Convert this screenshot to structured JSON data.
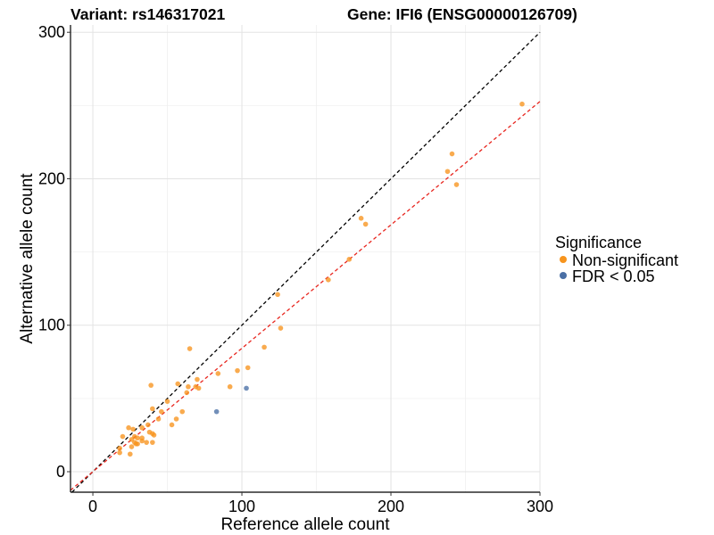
{
  "chart_data": {
    "type": "scatter",
    "title_left": "Variant: rs146317021",
    "title_right": "Gene: IFI6 (ENSG00000126709)",
    "xlabel": "Reference allele count",
    "ylabel": "Alternative allele count",
    "xlim": [
      -15,
      300
    ],
    "ylim": [
      -14,
      305
    ],
    "xticks": [
      0,
      100,
      200,
      300
    ],
    "yticks": [
      0,
      100,
      200,
      300
    ],
    "grid": true,
    "legend": {
      "title": "Significance",
      "position": "right",
      "entries": [
        {
          "label": "Non-significant",
          "color": "#F7941D"
        },
        {
          "label": "FDR < 0.05",
          "color": "#4A6FA5"
        }
      ]
    },
    "reference_lines": [
      {
        "kind": "identity",
        "slope": 1.0,
        "intercept": 0,
        "color": "#000000",
        "style": "dashed"
      },
      {
        "kind": "fit",
        "slope": 0.8426,
        "intercept": 0,
        "color": "#E8261F",
        "style": "dashed"
      }
    ],
    "series": [
      {
        "group": "Non-significant",
        "color": "#F7941D",
        "points": [
          [
            288,
            251
          ],
          [
            241,
            217
          ],
          [
            238,
            205
          ],
          [
            244,
            196
          ],
          [
            180,
            173
          ],
          [
            183,
            169
          ],
          [
            172,
            145
          ],
          [
            158,
            131
          ],
          [
            124,
            121
          ],
          [
            126,
            98
          ],
          [
            115,
            85
          ],
          [
            65,
            84
          ],
          [
            104,
            71
          ],
          [
            97,
            69
          ],
          [
            84,
            67
          ],
          [
            70,
            63
          ],
          [
            92,
            58
          ],
          [
            69,
            58
          ],
          [
            71,
            57
          ],
          [
            64,
            58
          ],
          [
            39,
            59
          ],
          [
            57,
            60
          ],
          [
            63,
            54
          ],
          [
            60,
            41
          ],
          [
            56,
            36
          ],
          [
            53,
            32
          ],
          [
            50,
            48
          ],
          [
            46,
            41
          ],
          [
            40,
            43
          ],
          [
            44,
            36
          ],
          [
            37,
            32
          ],
          [
            33,
            30
          ],
          [
            38,
            27
          ],
          [
            40,
            26
          ],
          [
            41,
            25
          ],
          [
            33,
            23
          ],
          [
            28,
            24
          ],
          [
            30,
            23
          ],
          [
            24,
            30
          ],
          [
            27,
            29
          ],
          [
            26,
            22
          ],
          [
            28,
            20
          ],
          [
            30,
            19
          ],
          [
            33,
            21
          ],
          [
            36,
            20
          ],
          [
            40,
            20
          ],
          [
            26,
            17
          ],
          [
            20,
            24
          ],
          [
            18,
            16
          ],
          [
            18,
            13
          ],
          [
            25,
            12
          ],
          [
            29,
            19
          ]
        ]
      },
      {
        "group": "FDR < 0.05",
        "color": "#4A6FA5",
        "points": [
          [
            103,
            57
          ],
          [
            83,
            41
          ]
        ]
      }
    ]
  }
}
